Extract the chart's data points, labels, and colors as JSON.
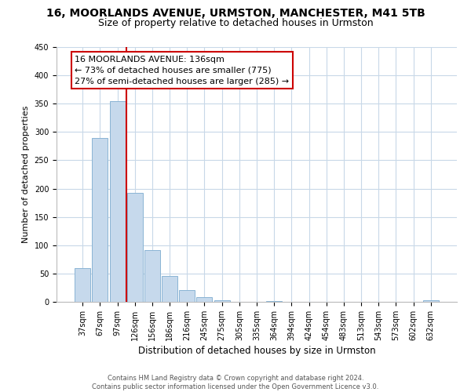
{
  "title": "16, MOORLANDS AVENUE, URMSTON, MANCHESTER, M41 5TB",
  "subtitle": "Size of property relative to detached houses in Urmston",
  "xlabel": "Distribution of detached houses by size in Urmston",
  "ylabel": "Number of detached properties",
  "bar_labels": [
    "37sqm",
    "67sqm",
    "97sqm",
    "126sqm",
    "156sqm",
    "186sqm",
    "216sqm",
    "245sqm",
    "275sqm",
    "305sqm",
    "335sqm",
    "364sqm",
    "394sqm",
    "424sqm",
    "454sqm",
    "483sqm",
    "513sqm",
    "543sqm",
    "573sqm",
    "602sqm",
    "632sqm"
  ],
  "bar_values": [
    59,
    290,
    355,
    193,
    91,
    46,
    21,
    8,
    3,
    0,
    0,
    2,
    0,
    0,
    0,
    0,
    0,
    0,
    0,
    0,
    3
  ],
  "bar_color": "#c6d9ec",
  "bar_edge_color": "#8ab4d4",
  "highlight_bar_index": 3,
  "highlight_color": "#cc0000",
  "annotation_title": "16 MOORLANDS AVENUE: 136sqm",
  "annotation_line1": "← 73% of detached houses are smaller (775)",
  "annotation_line2": "27% of semi-detached houses are larger (285) →",
  "annotation_box_color": "#ffffff",
  "annotation_box_edge": "#cc0000",
  "ylim": [
    0,
    450
  ],
  "yticks": [
    0,
    50,
    100,
    150,
    200,
    250,
    300,
    350,
    400,
    450
  ],
  "footer_line1": "Contains HM Land Registry data © Crown copyright and database right 2024.",
  "footer_line2": "Contains public sector information licensed under the Open Government Licence v3.0.",
  "background_color": "#ffffff",
  "grid_color": "#c8d8e8",
  "title_fontsize": 10,
  "subtitle_fontsize": 9,
  "annotation_fontsize": 8,
  "tick_fontsize": 7,
  "ylabel_fontsize": 8,
  "xlabel_fontsize": 8.5,
  "footer_fontsize": 6
}
